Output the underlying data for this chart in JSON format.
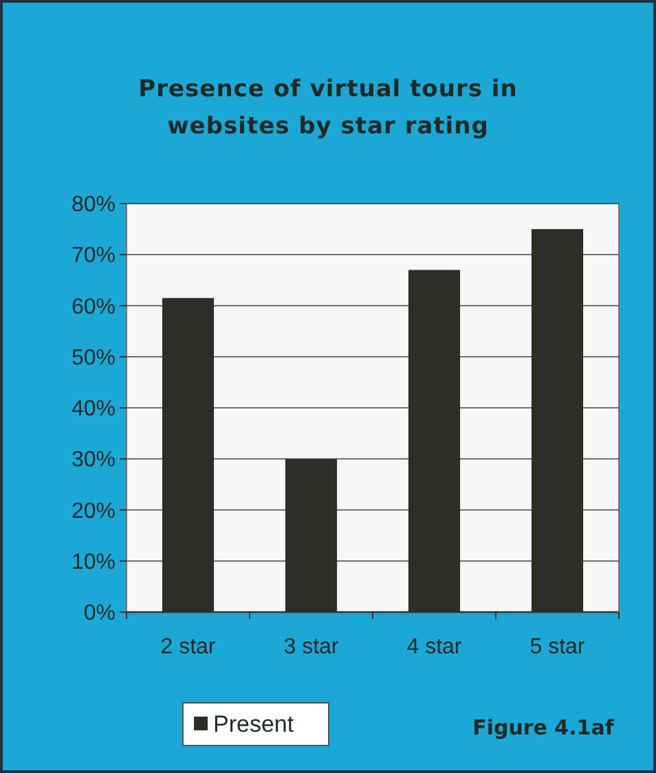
{
  "chart_data": {
    "type": "bar",
    "title": "Presence of virtual tours in websites by star rating",
    "categories": [
      "2 star",
      "3 star",
      "4 star",
      "5 star"
    ],
    "series": [
      {
        "name": "Present",
        "color": "#2b2f27",
        "values": [
          61.5,
          30,
          67,
          75
        ]
      }
    ],
    "ylim": [
      0,
      80
    ],
    "yticks": [
      {
        "value": 0,
        "label": "0%"
      },
      {
        "value": 10,
        "label": "10%"
      },
      {
        "value": 20,
        "label": "20%"
      },
      {
        "value": 30,
        "label": "30%"
      },
      {
        "value": 40,
        "label": "40%"
      },
      {
        "value": 50,
        "label": "50%"
      },
      {
        "value": 60,
        "label": "60%"
      },
      {
        "value": 70,
        "label": "70%"
      },
      {
        "value": 80,
        "label": "80%"
      }
    ],
    "grid": "y",
    "legend": "bottom left",
    "annotations": [
      "Figure 4.1af"
    ]
  }
}
